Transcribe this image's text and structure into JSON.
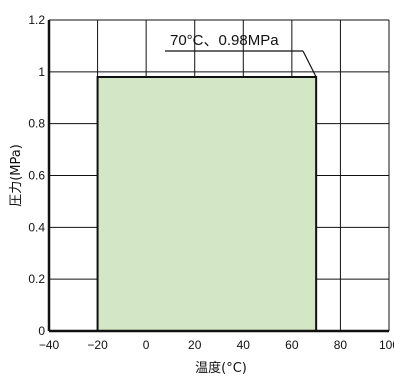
{
  "chart_data": {
    "type": "area",
    "title": "",
    "xlabel": "温度(°C)",
    "ylabel": "圧力(MPa)",
    "xlim": [
      -40,
      100
    ],
    "ylim": [
      0,
      1.2
    ],
    "x_ticks": [
      -40,
      -20,
      0,
      20,
      40,
      60,
      80,
      100
    ],
    "y_ticks": [
      0,
      0.2,
      0.4,
      0.6,
      0.8,
      1,
      1.2
    ],
    "x_tick_labels": [
      "−40",
      "−20",
      "0",
      "20",
      "40",
      "60",
      "80",
      "100"
    ],
    "y_tick_labels": [
      "0",
      "0.2",
      "0.4",
      "0.6",
      "0.8",
      "1",
      "1.2"
    ],
    "grid": true,
    "series": [
      {
        "region": {
          "x": [
            -20,
            70
          ],
          "y": [
            0,
            0.98
          ]
        }
      }
    ],
    "annotations": [
      {
        "text": "70°C、0.98MPa",
        "x": 70,
        "y": 0.98
      }
    ],
    "colors": {
      "fill": "#d3e6c6",
      "stroke": "#111111",
      "grid": "#111111"
    }
  }
}
